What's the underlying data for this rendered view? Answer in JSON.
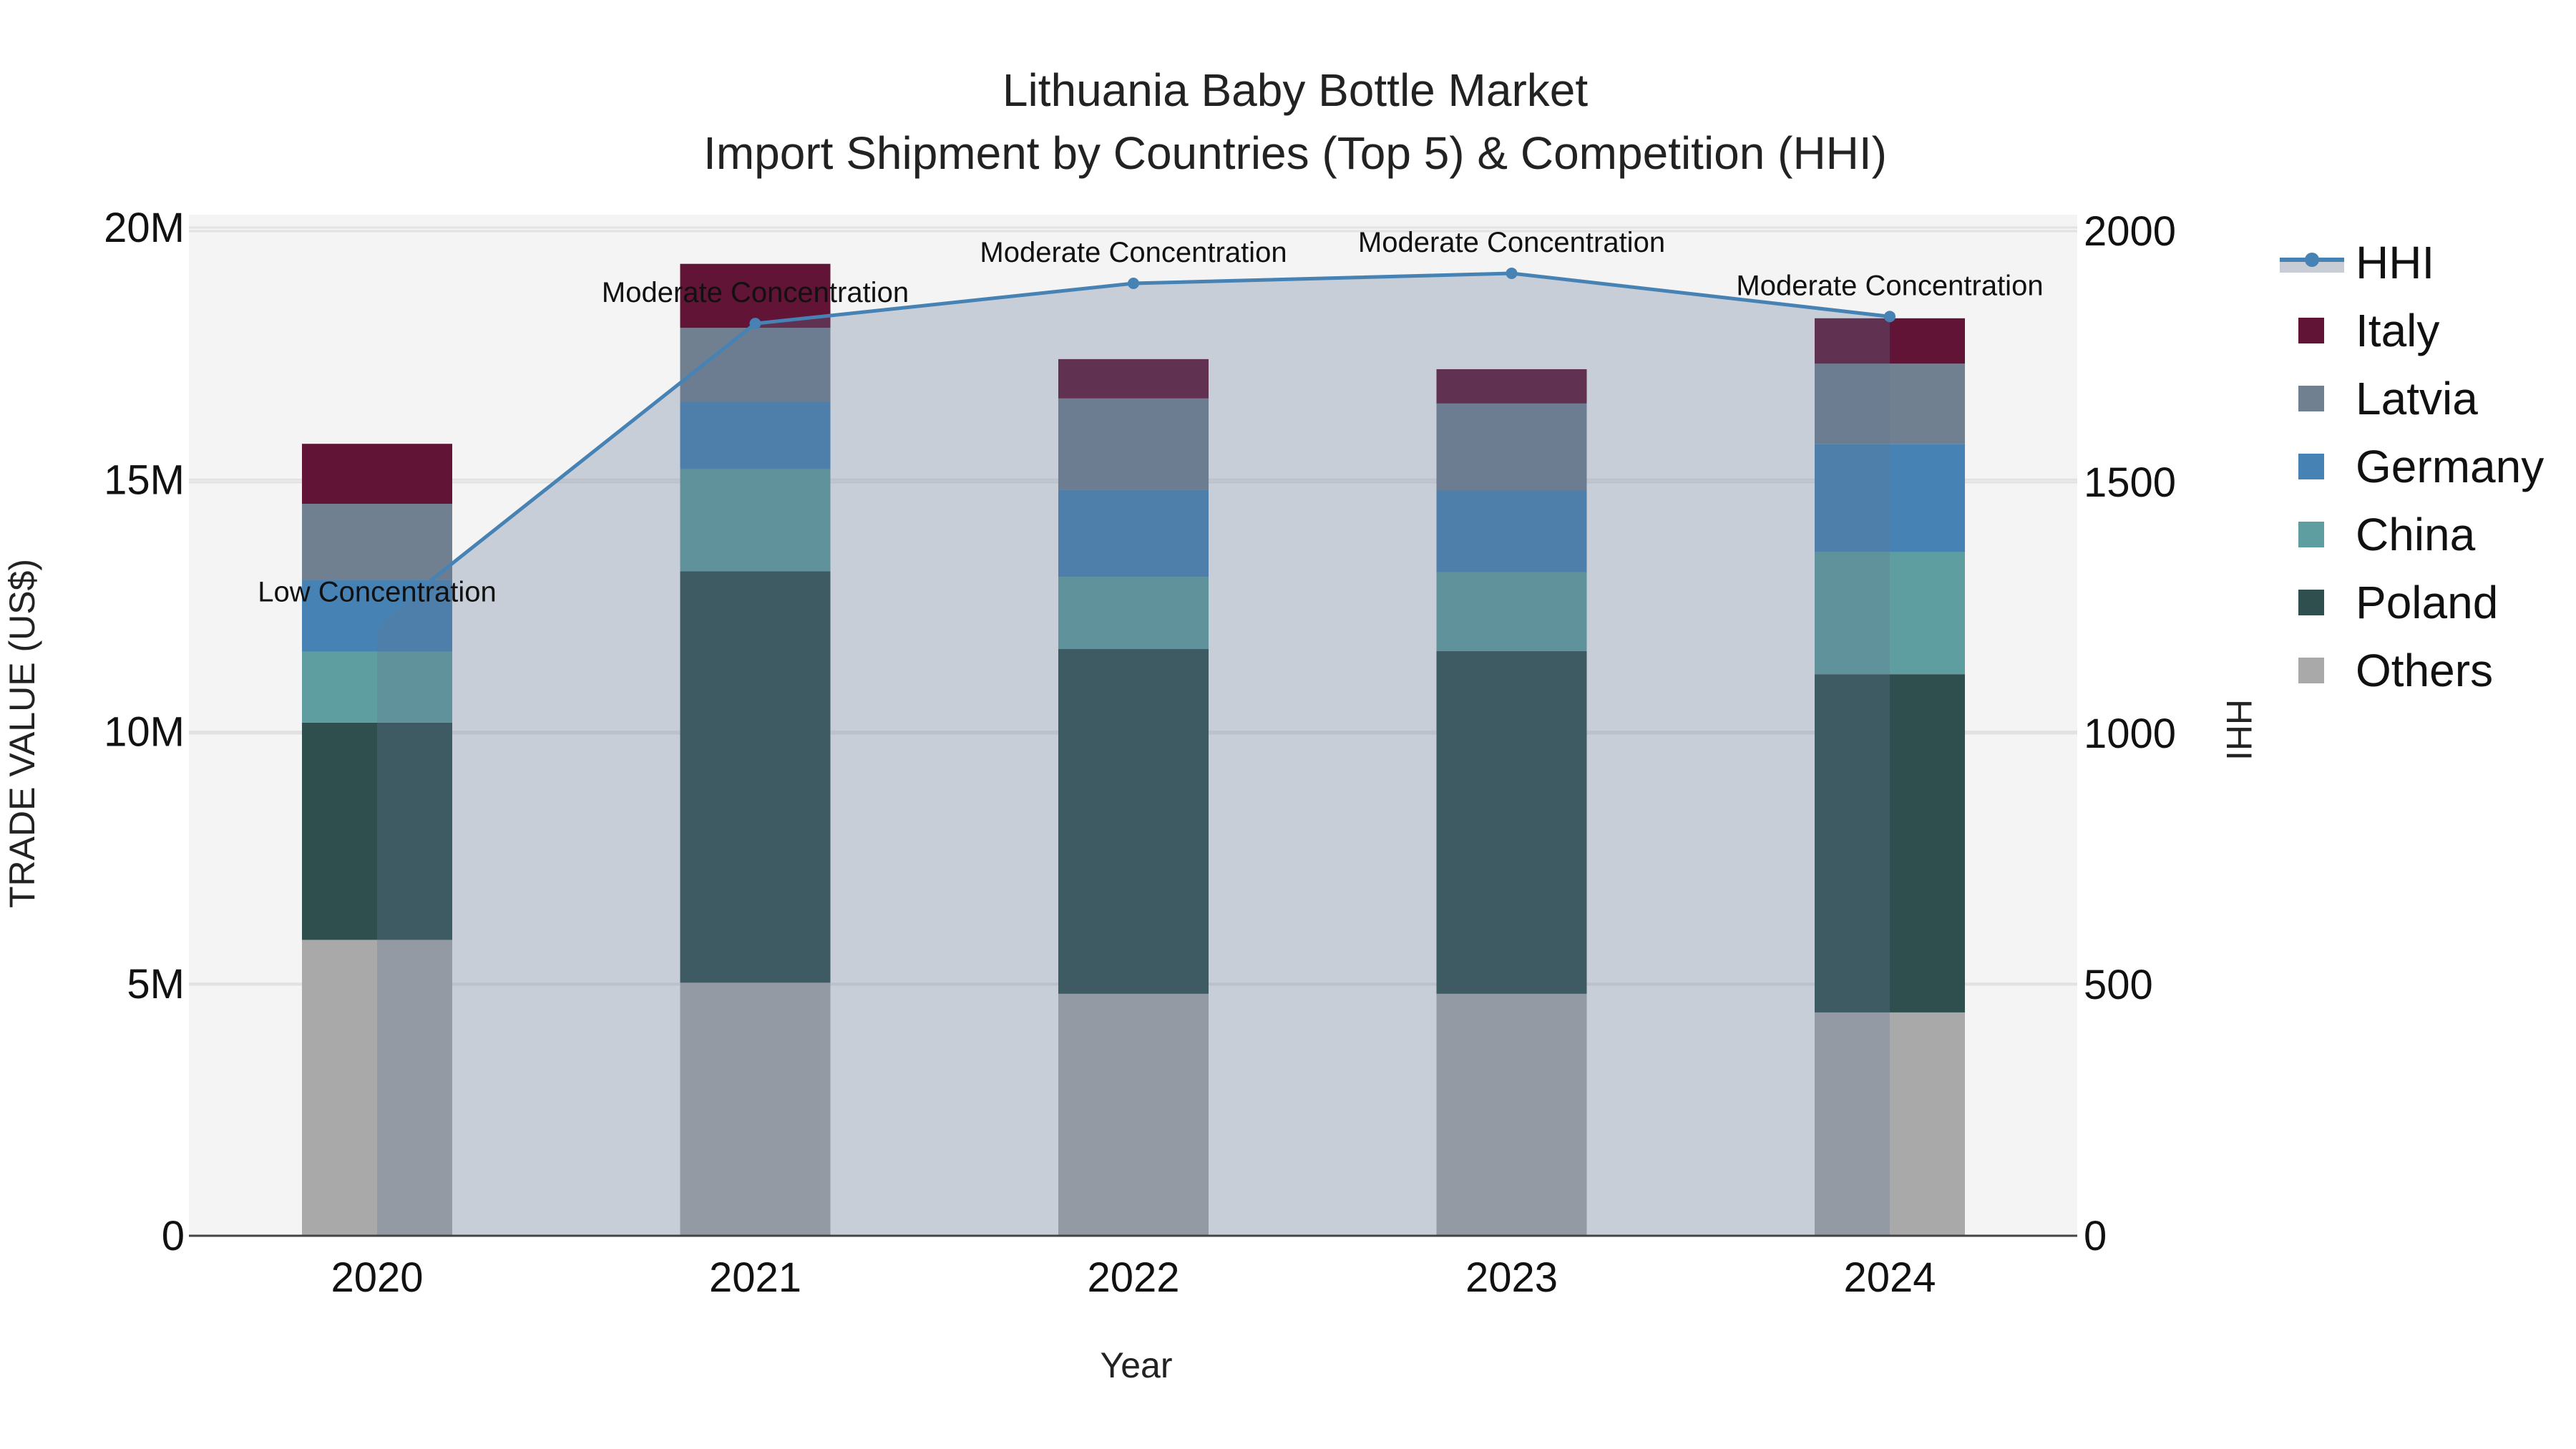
{
  "title": {
    "line1": "Lithuania Baby Bottle Market",
    "line2": "Import Shipment by Countries (Top 5) & Competition (HHI)"
  },
  "axes": {
    "x_title": "Year",
    "y_left_title": "TRADE VALUE (US$)",
    "y_right_title": "HHI",
    "y_left_ticks": [
      "0",
      "5M",
      "10M",
      "15M",
      "20M"
    ],
    "y_right_ticks": [
      "0",
      "500",
      "1000",
      "1500",
      "2000"
    ],
    "x_ticks": [
      "2020",
      "2021",
      "2022",
      "2023",
      "2024"
    ]
  },
  "legend": [
    {
      "name": "HHI",
      "type": "line",
      "color": "#4682b4"
    },
    {
      "name": "Italy",
      "type": "bar",
      "color": "#611435"
    },
    {
      "name": "Latvia",
      "type": "bar",
      "color": "#708090"
    },
    {
      "name": "Germany",
      "type": "bar",
      "color": "#4682b4"
    },
    {
      "name": "China",
      "type": "bar",
      "color": "#5f9ea0"
    },
    {
      "name": "Poland",
      "type": "bar",
      "color": "#2f4f4f"
    },
    {
      "name": "Others",
      "type": "bar",
      "color": "#a9a9a9"
    }
  ],
  "chart_data": {
    "type": "bar",
    "stacked": true,
    "title": "Lithuania Baby Bottle Market — Import Shipment by Countries (Top 5) & Competition (HHI)",
    "xlabel": "Year",
    "ylabel": "TRADE VALUE (US$)",
    "y2label": "HHI",
    "ylim": [
      0,
      20000000
    ],
    "y2lim": [
      0,
      2000
    ],
    "grid": true,
    "legend_position": "right",
    "categories": [
      "2020",
      "2021",
      "2022",
      "2023",
      "2024"
    ],
    "series": [
      {
        "name": "Others",
        "color": "#a9a9a9",
        "values": [
          5870000,
          5020000,
          4800000,
          4800000,
          4430000
        ]
      },
      {
        "name": "Poland",
        "color": "#2f4f4f",
        "values": [
          4310000,
          8160000,
          6840000,
          6800000,
          6710000
        ]
      },
      {
        "name": "China",
        "color": "#5f9ea0",
        "values": [
          1410000,
          2030000,
          1430000,
          1560000,
          2420000
        ]
      },
      {
        "name": "Germany",
        "color": "#4682b4",
        "values": [
          1420000,
          1340000,
          1730000,
          1630000,
          2150000
        ]
      },
      {
        "name": "Latvia",
        "color": "#708090",
        "values": [
          1510000,
          1460000,
          1810000,
          1720000,
          1590000
        ]
      },
      {
        "name": "Italy",
        "color": "#611435",
        "values": [
          1190000,
          1270000,
          780000,
          680000,
          900000
        ]
      }
    ],
    "line_series": {
      "name": "HHI",
      "axis": "right",
      "color": "#4682b4",
      "fill": "tozeroy",
      "values": [
        1220,
        1816,
        1896,
        1916,
        1830
      ],
      "annotations": [
        "Low Concentration",
        "Moderate Concentration",
        "Moderate Concentration",
        "Moderate Concentration",
        "Moderate Concentration"
      ]
    }
  }
}
